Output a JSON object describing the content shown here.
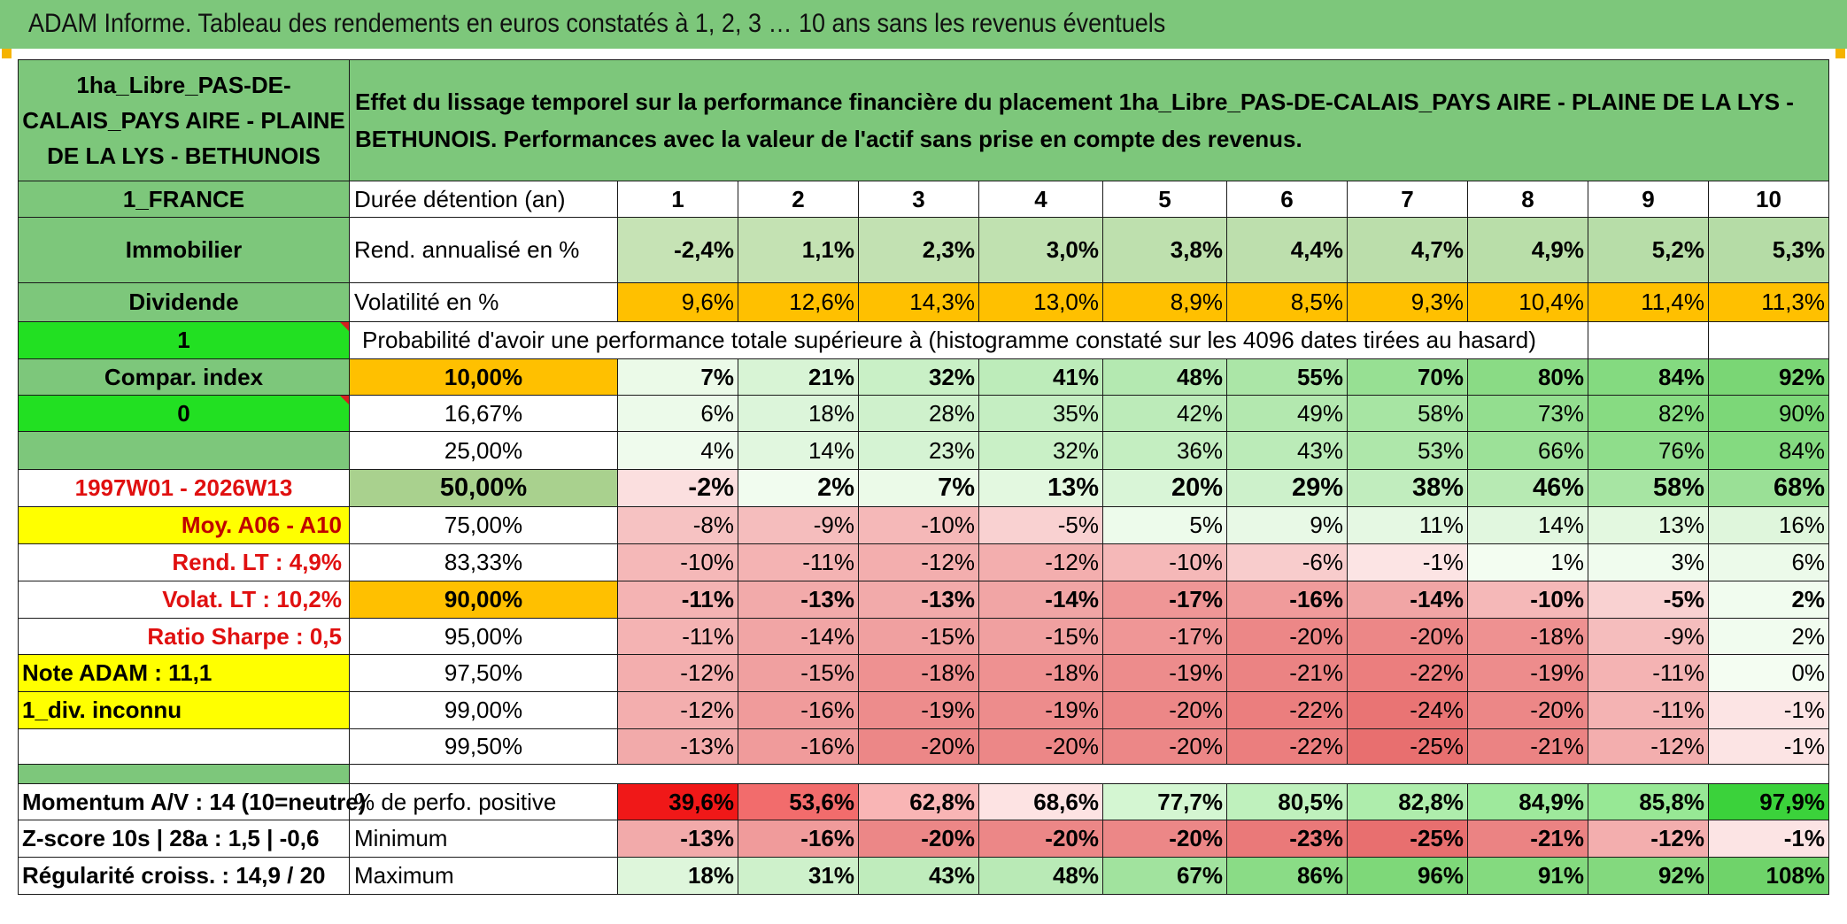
{
  "banner": {
    "title": "ADAM Informe. Tableau des rendements en euros constatés à 1, 2, 3 … 10 ans sans les revenus éventuels"
  },
  "header": {
    "asset_name": "1ha_Libre_PAS-DE-CALAIS_PAYS AIRE - PLAINE DE LA LYS - BETHUNOIS",
    "description": "Effet du lissage temporel sur la performance financière du placement 1ha_Libre_PAS-DE-CALAIS_PAYS AIRE - PLAINE DE LA LYS - BETHUNOIS. Performances avec la valeur de l'actif sans prise en compte des revenus."
  },
  "left": {
    "country": "1_FRANCE",
    "category": "Immobilier",
    "income": "Dividende",
    "flag1": "1",
    "compar": "Compar. index",
    "flag0": "0",
    "period": "1997W01 - 2026W13",
    "moy": "Moy. A06 - A10",
    "rend_lt": "Rend. LT :    4,9%",
    "volat_lt": "Volat. LT :    10,2%",
    "sharpe": "Ratio Sharpe :    0,5",
    "note": "Note ADAM : 11,1",
    "div": "1_div. inconnu",
    "momentum": "Momentum A/V : 14 (10=neutre)",
    "zscore": "Z-score 10s | 28a : 1,5 | -0,6",
    "regularite": "Régularité croiss. : 14,9 / 20"
  },
  "rows": {
    "duree_label": "Durée détention (an)",
    "years": [
      "1",
      "2",
      "3",
      "4",
      "5",
      "6",
      "7",
      "8",
      "9",
      "10"
    ],
    "rend_label": "Rend. annualisé en %",
    "rend": [
      "-2,4%",
      "1,1%",
      "2,3%",
      "3,0%",
      "3,8%",
      "4,4%",
      "4,7%",
      "4,9%",
      "5,2%",
      "5,3%"
    ],
    "vol_label": "Volatilité en %",
    "vol": [
      "9,6%",
      "12,6%",
      "14,3%",
      "13,0%",
      "8,9%",
      "8,5%",
      "9,3%",
      "10,4%",
      "11,4%",
      "11,3%"
    ],
    "prob_label": "Probabilité d'avoir une performance totale supérieure à (histogramme constaté sur les 4096 dates tirées au hasard)"
  },
  "quantiles": [
    {
      "p": "10,00%",
      "v": [
        "7%",
        "21%",
        "32%",
        "41%",
        "48%",
        "55%",
        "70%",
        "80%",
        "84%",
        "92%"
      ]
    },
    {
      "p": "16,67%",
      "v": [
        "6%",
        "18%",
        "28%",
        "35%",
        "42%",
        "49%",
        "58%",
        "73%",
        "82%",
        "90%"
      ]
    },
    {
      "p": "25,00%",
      "v": [
        "4%",
        "14%",
        "23%",
        "32%",
        "36%",
        "43%",
        "53%",
        "66%",
        "76%",
        "84%"
      ]
    },
    {
      "p": "50,00%",
      "v": [
        "-2%",
        "2%",
        "7%",
        "13%",
        "20%",
        "29%",
        "38%",
        "46%",
        "58%",
        "68%"
      ]
    },
    {
      "p": "75,00%",
      "v": [
        "-8%",
        "-9%",
        "-10%",
        "-5%",
        "5%",
        "9%",
        "11%",
        "14%",
        "13%",
        "16%"
      ]
    },
    {
      "p": "83,33%",
      "v": [
        "-10%",
        "-11%",
        "-12%",
        "-12%",
        "-10%",
        "-6%",
        "-1%",
        "1%",
        "3%",
        "6%"
      ]
    },
    {
      "p": "90,00%",
      "v": [
        "-11%",
        "-13%",
        "-13%",
        "-14%",
        "-17%",
        "-16%",
        "-14%",
        "-10%",
        "-5%",
        "2%"
      ]
    },
    {
      "p": "95,00%",
      "v": [
        "-11%",
        "-14%",
        "-15%",
        "-15%",
        "-17%",
        "-20%",
        "-20%",
        "-18%",
        "-9%",
        "2%"
      ]
    },
    {
      "p": "97,50%",
      "v": [
        "-12%",
        "-15%",
        "-18%",
        "-18%",
        "-19%",
        "-21%",
        "-22%",
        "-19%",
        "-11%",
        "0%"
      ]
    },
    {
      "p": "99,00%",
      "v": [
        "-12%",
        "-16%",
        "-19%",
        "-19%",
        "-20%",
        "-22%",
        "-24%",
        "-20%",
        "-11%",
        "-1%"
      ]
    },
    {
      "p": "99,50%",
      "v": [
        "-13%",
        "-16%",
        "-20%",
        "-20%",
        "-20%",
        "-22%",
        "-25%",
        "-21%",
        "-12%",
        "-1%"
      ]
    }
  ],
  "bottom": {
    "pos_label": "% de perfo. positive",
    "pos": [
      "39,6%",
      "53,6%",
      "62,8%",
      "68,6%",
      "77,7%",
      "80,5%",
      "82,8%",
      "84,9%",
      "85,8%",
      "97,9%"
    ],
    "min_label": "Minimum",
    "min": [
      "-13%",
      "-16%",
      "-20%",
      "-20%",
      "-20%",
      "-23%",
      "-25%",
      "-21%",
      "-12%",
      "-1%"
    ],
    "max_label": "Maximum",
    "max": [
      "18%",
      "31%",
      "43%",
      "48%",
      "67%",
      "86%",
      "96%",
      "91%",
      "92%",
      "108%"
    ]
  },
  "colors": {
    "header_green": "#7dc77b",
    "bright_green": "#22e022",
    "orange": "#ffc000",
    "yellow": "#ffff00",
    "red_text": "#e01010"
  }
}
